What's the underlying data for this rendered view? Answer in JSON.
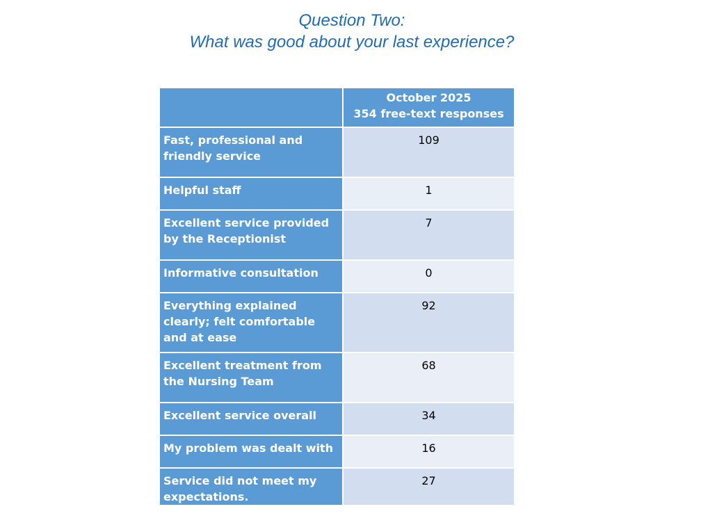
{
  "title": {
    "line1": "Question Two:",
    "line2": "What was good about your last experience?"
  },
  "table": {
    "header": {
      "period": "October 2025",
      "responses": "354 free-text responses"
    },
    "rows": [
      {
        "label": "Fast, professional and friendly service",
        "value": "109"
      },
      {
        "label": "Helpful staff",
        "value": "1"
      },
      {
        "label": "Excellent service provided by the Receptionist",
        "value": "7"
      },
      {
        "label": "Informative consultation",
        "value": "0"
      },
      {
        "label": "Everything explained clearly; felt comfortable and at ease",
        "value": "92"
      },
      {
        "label": "Excellent treatment from the Nursing Team",
        "value": "68"
      },
      {
        "label": "Excellent service overall",
        "value": "34"
      },
      {
        "label": "My problem was dealt with",
        "value": "16"
      },
      {
        "label": "Service did not meet my expectations.",
        "value": "27"
      }
    ]
  },
  "colors": {
    "title": "#1f6cb5",
    "header_fill": "#5b9bd5",
    "row_band_dark": "#d2deef",
    "row_band_light": "#eaeff7"
  }
}
